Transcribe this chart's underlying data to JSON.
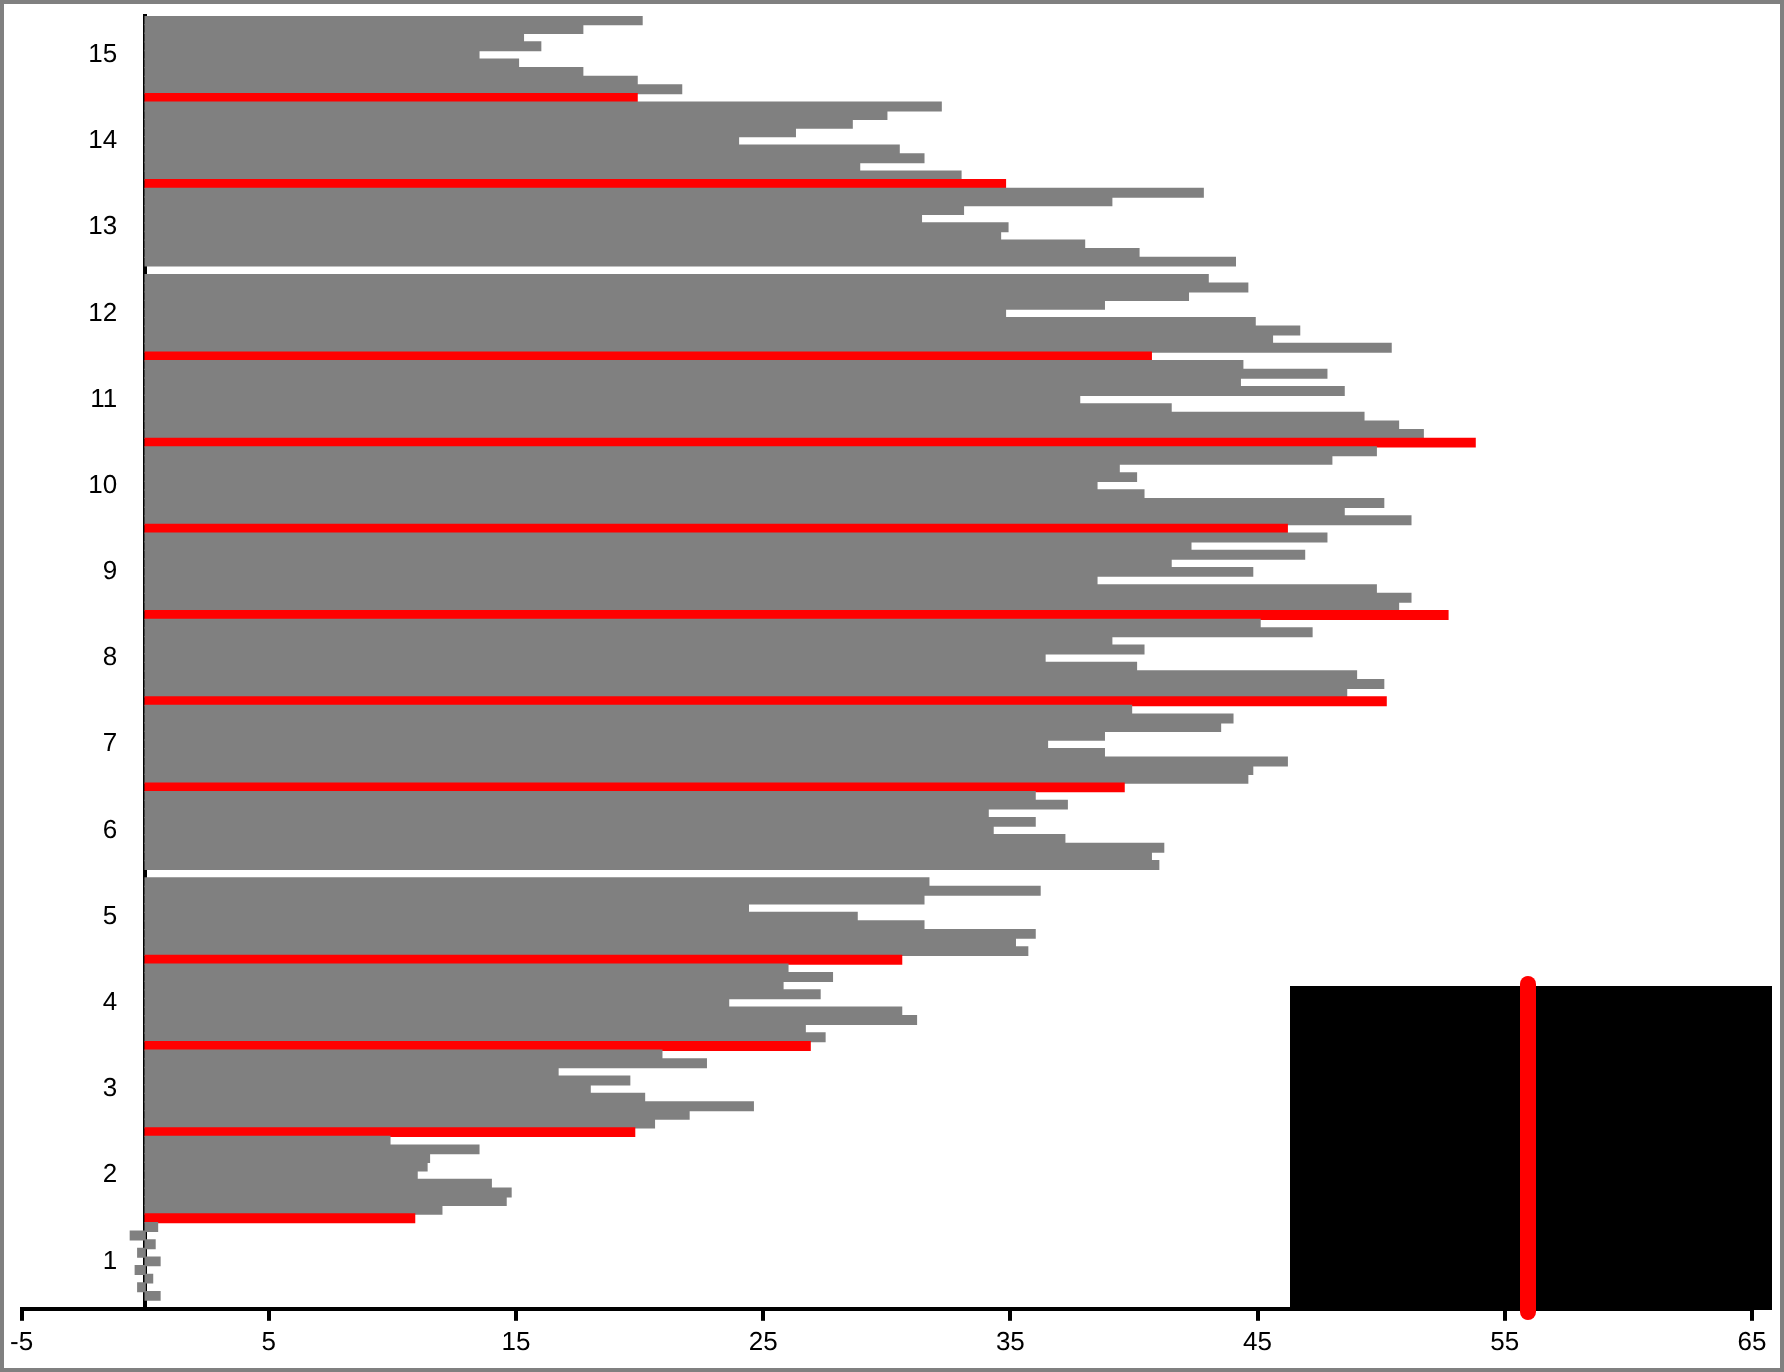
{
  "chart_data": {
    "type": "bar",
    "orientation": "horizontal",
    "categories": [
      null,
      null,
      null,
      null,
      "15",
      null,
      null,
      null,
      null,
      null,
      null,
      null,
      null,
      null,
      "14",
      null,
      null,
      null,
      null,
      null,
      null,
      null,
      null,
      null,
      "13",
      null,
      null,
      null,
      null,
      null,
      null,
      null,
      null,
      null,
      "12",
      null,
      null,
      null,
      null,
      null,
      null,
      null,
      null,
      null,
      "11",
      null,
      null,
      null,
      null,
      null,
      null,
      null,
      null,
      null,
      "10",
      null,
      null,
      null,
      null,
      null,
      null,
      null,
      null,
      null,
      "9",
      null,
      null,
      null,
      null,
      null,
      null,
      null,
      null,
      null,
      "8",
      null,
      null,
      null,
      null,
      null,
      null,
      null,
      null,
      null,
      "7",
      null,
      null,
      null,
      null,
      null,
      null,
      null,
      null,
      null,
      "6",
      null,
      null,
      null,
      null,
      null,
      null,
      null,
      null,
      null,
      "5",
      null,
      null,
      null,
      null,
      null,
      null,
      null,
      null,
      null,
      "4",
      null,
      null,
      null,
      null,
      null,
      null,
      null,
      null,
      null,
      "3",
      null,
      null,
      null,
      null,
      null,
      null,
      null,
      null,
      null,
      "2",
      null,
      null,
      null,
      null,
      null,
      null,
      null,
      null,
      null,
      "1",
      null,
      null,
      null,
      null,
      null
    ],
    "values": [
      20.1,
      17.7,
      15.3,
      16.0,
      13.5,
      15.1,
      17.7,
      19.9,
      21.7,
      19.9,
      32.2,
      30.0,
      28.6,
      26.3,
      24.0,
      30.5,
      31.5,
      28.9,
      33.0,
      34.8,
      42.8,
      39.1,
      33.1,
      31.4,
      34.9,
      34.6,
      38.0,
      40.2,
      44.1,
      null,
      43.0,
      44.6,
      42.2,
      38.8,
      34.8,
      44.9,
      46.7,
      45.6,
      50.4,
      40.7,
      44.4,
      47.8,
      44.3,
      48.5,
      37.8,
      41.5,
      49.3,
      50.7,
      51.7,
      53.8,
      49.8,
      48.0,
      39.4,
      40.1,
      38.5,
      40.4,
      50.1,
      48.5,
      51.2,
      46.2,
      47.8,
      42.3,
      46.9,
      41.5,
      44.8,
      38.5,
      49.8,
      51.2,
      50.7,
      52.7,
      45.1,
      47.2,
      39.1,
      40.4,
      36.4,
      40.1,
      49.0,
      50.1,
      48.6,
      50.2,
      39.9,
      44.0,
      43.5,
      38.8,
      36.5,
      38.8,
      46.2,
      44.8,
      44.6,
      39.6,
      36.0,
      37.3,
      34.1,
      36.0,
      34.3,
      37.2,
      41.2,
      40.7,
      41.0,
      null,
      31.7,
      36.2,
      31.5,
      24.4,
      28.8,
      31.5,
      36.0,
      35.2,
      35.7,
      30.6,
      26.0,
      27.8,
      25.8,
      27.3,
      23.6,
      30.6,
      31.2,
      26.7,
      27.5,
      26.9,
      20.9,
      22.7,
      16.7,
      19.6,
      18.0,
      20.2,
      24.6,
      22.0,
      20.6,
      19.8,
      9.9,
      13.5,
      11.5,
      11.4,
      11.0,
      14.0,
      14.8,
      14.6,
      12.0,
      10.9,
      0.5,
      -0.6,
      0.4,
      -0.3,
      0.6,
      -0.4,
      0.3,
      -0.3,
      0.6,
      null
    ],
    "colors": [
      "#808080",
      "#808080",
      "#808080",
      "#808080",
      "#808080",
      "#808080",
      "#808080",
      "#808080",
      "#808080",
      "#ff0000",
      "#808080",
      "#808080",
      "#808080",
      "#808080",
      "#808080",
      "#808080",
      "#808080",
      "#808080",
      "#808080",
      "#ff0000",
      "#808080",
      "#808080",
      "#808080",
      "#808080",
      "#808080",
      "#808080",
      "#808080",
      "#808080",
      "#808080",
      "#808080",
      "#808080",
      "#808080",
      "#808080",
      "#808080",
      "#808080",
      "#808080",
      "#808080",
      "#808080",
      "#808080",
      "#ff0000",
      "#808080",
      "#808080",
      "#808080",
      "#808080",
      "#808080",
      "#808080",
      "#808080",
      "#808080",
      "#808080",
      "#ff0000",
      "#808080",
      "#808080",
      "#808080",
      "#808080",
      "#808080",
      "#808080",
      "#808080",
      "#808080",
      "#808080",
      "#ff0000",
      "#808080",
      "#808080",
      "#808080",
      "#808080",
      "#808080",
      "#808080",
      "#808080",
      "#808080",
      "#808080",
      "#ff0000",
      "#808080",
      "#808080",
      "#808080",
      "#808080",
      "#808080",
      "#808080",
      "#808080",
      "#808080",
      "#808080",
      "#ff0000",
      "#808080",
      "#808080",
      "#808080",
      "#808080",
      "#808080",
      "#808080",
      "#808080",
      "#808080",
      "#808080",
      "#ff0000",
      "#808080",
      "#808080",
      "#808080",
      "#808080",
      "#808080",
      "#808080",
      "#808080",
      "#808080",
      "#808080",
      "#808080",
      "#808080",
      "#808080",
      "#808080",
      "#808080",
      "#808080",
      "#808080",
      "#808080",
      "#808080",
      "#808080",
      "#ff0000",
      "#808080",
      "#808080",
      "#808080",
      "#808080",
      "#808080",
      "#808080",
      "#808080",
      "#808080",
      "#808080",
      "#ff0000",
      "#808080",
      "#808080",
      "#808080",
      "#808080",
      "#808080",
      "#808080",
      "#808080",
      "#808080",
      "#808080",
      "#ff0000",
      "#808080",
      "#808080",
      "#808080",
      "#808080",
      "#808080",
      "#808080",
      "#808080",
      "#808080",
      "#808080",
      "#ff0000",
      "#808080",
      "#808080",
      "#808080",
      "#808080",
      "#808080",
      "#808080",
      "#808080",
      "#808080",
      "#808080",
      "#808080"
    ],
    "xlim": [
      -5,
      65
    ],
    "xticks": [
      -5,
      5,
      15,
      25,
      35,
      45,
      55,
      65
    ]
  }
}
